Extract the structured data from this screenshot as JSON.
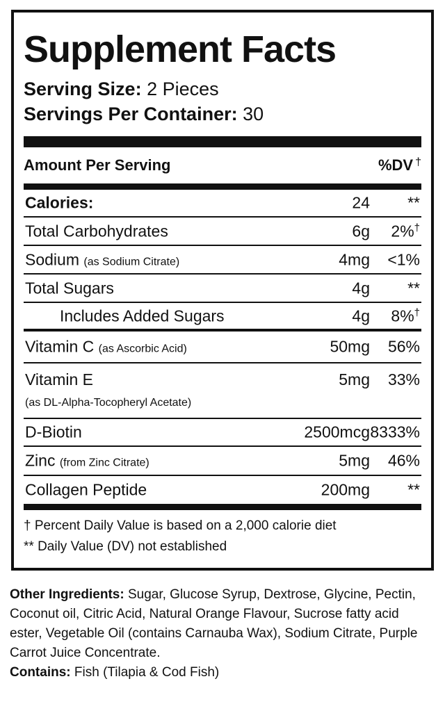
{
  "title": "Supplement Facts",
  "serving_size": {
    "label": "Serving Size:",
    "value": "2 Pieces"
  },
  "servings_per_container": {
    "label": "Servings Per Container:",
    "value": "30"
  },
  "header": {
    "amount_label": "Amount Per Serving",
    "dv_label": "%DV",
    "dv_mark": "†"
  },
  "rows": [
    {
      "name": "Calories:",
      "note": "",
      "amount": "24",
      "dv": "**",
      "dv_mark": ""
    },
    {
      "name": "Total Carbohydrates",
      "note": "",
      "amount": "6g",
      "dv": "2%",
      "dv_mark": "†"
    },
    {
      "name": "Sodium",
      "note": "(as Sodium Citrate)",
      "amount": "4mg",
      "dv": "<1%",
      "dv_mark": ""
    },
    {
      "name": "Total Sugars",
      "note": "",
      "amount": "4g",
      "dv": "**",
      "dv_mark": ""
    },
    {
      "name": "Includes Added Sugars",
      "note": "",
      "amount": "4g",
      "dv": "8%",
      "dv_mark": "†"
    },
    {
      "name": "Vitamin C",
      "note": "(as Ascorbic Acid)",
      "amount": "50mg",
      "dv": "56%",
      "dv_mark": ""
    },
    {
      "name": "Vitamin E",
      "note": "(as DL-Alpha-Tocopheryl Acetate)",
      "amount": "5mg",
      "dv": "33%",
      "dv_mark": ""
    },
    {
      "name": "D-Biotin",
      "note": "",
      "amount": "2500mcg",
      "dv": "8333%",
      "dv_mark": ""
    },
    {
      "name": "Zinc",
      "note": "(from Zinc Citrate)",
      "amount": "5mg",
      "dv": "46%",
      "dv_mark": ""
    },
    {
      "name": "Collagen Peptide",
      "note": "",
      "amount": "200mg",
      "dv": "**",
      "dv_mark": ""
    }
  ],
  "footnotes": {
    "dagger": "† Percent Daily Value is based on a 2,000 calorie diet",
    "double_star": "** Daily Value (DV) not established"
  },
  "other_ingredients": {
    "label": "Other Ingredients:",
    "text": "Sugar, Glucose Syrup, Dextrose, Glycine, Pectin, Coconut oil, Citric Acid, Natural Orange Flavour, Sucrose fatty acid ester, Vegetable Oil (contains Carnauba Wax), Sodium Citrate, Purple Carrot Juice Concentrate."
  },
  "contains": {
    "label": "Contains:",
    "text": "Fish (Tilapia & Cod Fish)"
  }
}
